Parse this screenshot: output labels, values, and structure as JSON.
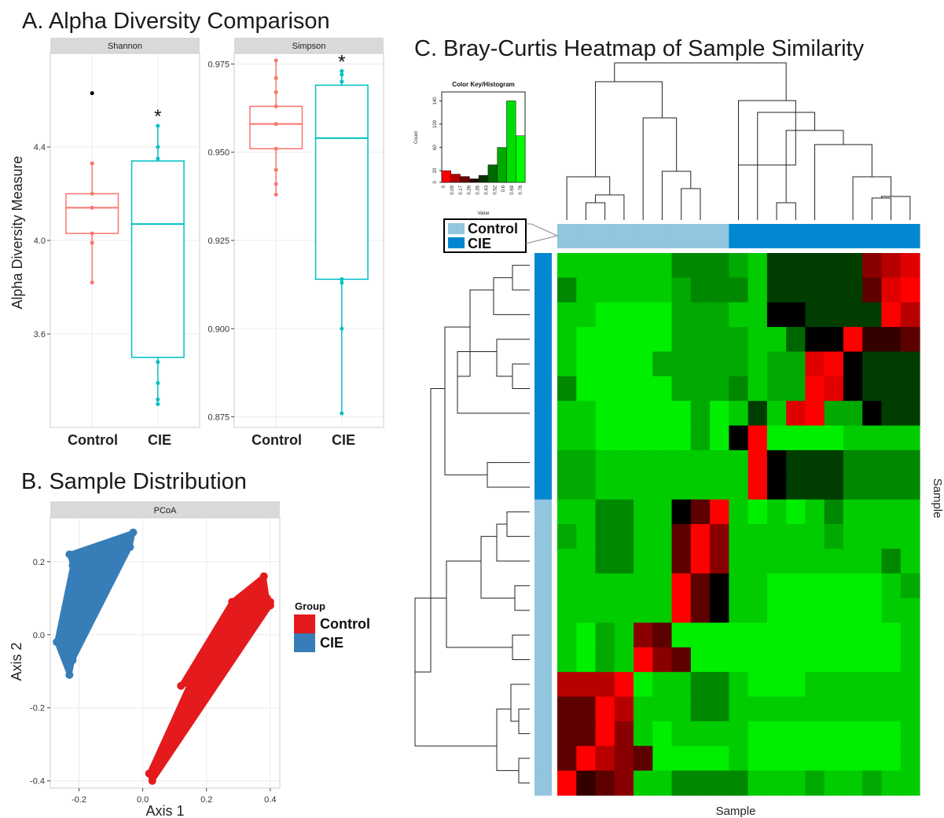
{
  "panels": {
    "a_title": "A. Alpha Diversity Comparison",
    "b_title": "B. Sample Distribution",
    "c_title": "C. Bray-Curtis Heatmap of Sample Similarity"
  },
  "colors": {
    "control_box": "#f8766d",
    "cie_box": "#00bfc4",
    "control_pcoa": "#e41a1c",
    "cie_pcoa": "#377eb8",
    "hm_control": "#92c5de",
    "hm_cie": "#0288d1",
    "strip_bg": "#d9d9d9",
    "panel_bg": "#ffffff",
    "grid": "#ebebeb"
  },
  "chart_data": [
    {
      "type": "box",
      "title": "Shannon",
      "ylabel": "Alpha Diversity Measure",
      "categories": [
        "Control",
        "CIE"
      ],
      "ylim": [
        3.2,
        4.8
      ],
      "yticks": [
        3.6,
        4.0,
        4.4
      ],
      "ytick_labels": [
        "3.6",
        "4.0",
        "4.4"
      ],
      "boxes": [
        {
          "group": "Control",
          "q1": 4.03,
          "median": 4.14,
          "q3": 4.2,
          "lower_whisker": 3.82,
          "upper_whisker": 4.33,
          "points": [
            3.82,
            3.99,
            4.03,
            4.14,
            4.2,
            4.33
          ],
          "outliers": [
            4.63
          ]
        },
        {
          "group": "CIE",
          "q1": 3.5,
          "median": 4.07,
          "q3": 4.34,
          "lower_whisker": 3.3,
          "upper_whisker": 4.49,
          "points": [
            3.3,
            3.32,
            3.39,
            3.48,
            4.35,
            4.4,
            4.49
          ],
          "outliers": []
        }
      ],
      "annotation": {
        "group": "CIE",
        "text": "*"
      }
    },
    {
      "type": "box",
      "title": "Simpson",
      "categories": [
        "Control",
        "CIE"
      ],
      "ylim": [
        0.872,
        0.978
      ],
      "yticks": [
        0.875,
        0.9,
        0.925,
        0.95,
        0.975
      ],
      "ytick_labels": [
        "0.875",
        "0.900",
        "0.925",
        "0.950",
        "0.975"
      ],
      "boxes": [
        {
          "group": "Control",
          "q1": 0.951,
          "median": 0.958,
          "q3": 0.963,
          "lower_whisker": 0.938,
          "upper_whisker": 0.976,
          "points": [
            0.938,
            0.941,
            0.945,
            0.951,
            0.958,
            0.963,
            0.967,
            0.971,
            0.976
          ],
          "outliers": []
        },
        {
          "group": "CIE",
          "q1": 0.914,
          "median": 0.954,
          "q3": 0.969,
          "lower_whisker": 0.876,
          "upper_whisker": 0.973,
          "points": [
            0.876,
            0.9,
            0.913,
            0.914,
            0.97,
            0.972,
            0.973
          ],
          "outliers": []
        }
      ],
      "annotation": {
        "group": "CIE",
        "text": "*"
      }
    },
    {
      "type": "scatter",
      "title": "PCoA",
      "xlabel": "Axis 1",
      "ylabel": "Axis 2",
      "xlim": [
        -0.29,
        0.43
      ],
      "ylim": [
        -0.42,
        0.32
      ],
      "xticks": [
        -0.2,
        0.0,
        0.2,
        0.4
      ],
      "xtick_labels": [
        "-0.2",
        "0.0",
        "0.2",
        "0.4"
      ],
      "yticks": [
        -0.4,
        -0.2,
        0.0,
        0.2
      ],
      "ytick_labels": [
        "-0.4",
        "-0.2",
        "0.0",
        "0.2"
      ],
      "legend_title": "Group",
      "legend_position": "right",
      "series": [
        {
          "name": "Control",
          "points": [
            [
              0.02,
              -0.38
            ],
            [
              0.03,
              -0.4
            ],
            [
              0.12,
              -0.14
            ],
            [
              0.15,
              -0.13
            ],
            [
              0.28,
              0.09
            ],
            [
              0.38,
              0.16
            ],
            [
              0.39,
              0.1
            ],
            [
              0.4,
              0.09
            ],
            [
              0.4,
              0.08
            ]
          ]
        },
        {
          "name": "CIE",
          "points": [
            [
              -0.03,
              0.28
            ],
            [
              -0.04,
              0.24
            ],
            [
              -0.23,
              0.22
            ],
            [
              -0.22,
              0.19
            ],
            [
              -0.27,
              -0.02
            ],
            [
              -0.22,
              -0.07
            ],
            [
              -0.23,
              -0.11
            ]
          ]
        }
      ]
    },
    {
      "type": "heatmap",
      "title": "Bray-Curtis Heatmap",
      "xlabel": "Sample",
      "ylabel": "Sample",
      "color_key": {
        "title": "Color Key/Histogram",
        "ylabel": "Count",
        "xlabel": "Value",
        "yticks": [
          0,
          20,
          60,
          100,
          140
        ],
        "xtick_labels": [
          "0",
          "0.09",
          "0.17",
          "0.26",
          "0.35",
          "0.43",
          "0.52",
          "0.6",
          "0.69",
          "0.78"
        ],
        "counts": [
          20,
          14,
          10,
          6,
          12,
          30,
          60,
          140,
          80
        ],
        "colors": [
          "#ff0000",
          "#b30000",
          "#6e0000",
          "#2a0000",
          "#003300",
          "#006b00",
          "#00a800",
          "#00dd00",
          "#00ff00"
        ]
      },
      "legend": [
        {
          "name": "Control",
          "color": "#92c5de"
        },
        {
          "name": "CIE",
          "color": "#0288d1"
        }
      ],
      "col_groups": [
        "Control",
        "Control",
        "Control",
        "Control",
        "Control",
        "Control",
        "Control",
        "Control",
        "Control",
        "CIE",
        "CIE",
        "CIE",
        "CIE",
        "CIE",
        "CIE",
        "CIE",
        "CIE",
        "CIE",
        "CIE"
      ],
      "row_groups": [
        "CIE",
        "CIE",
        "CIE",
        "CIE",
        "CIE",
        "CIE",
        "CIE",
        "CIE",
        "CIE",
        "CIE",
        "Control",
        "Control",
        "Control",
        "Control",
        "Control",
        "Control",
        "Control",
        "Control",
        "Control",
        "Control",
        "Control",
        "Control"
      ],
      "palette": {
        "a": "#00ee00",
        "b": "#00cc00",
        "c": "#00aa00",
        "d": "#008800",
        "e": "#006600",
        "f": "#003d00",
        "g": "#001a00",
        "k": "#000000",
        "m": "#330000",
        "n": "#5c0000",
        "o": "#8a0000",
        "p": "#b80000",
        "q": "#e00000",
        "r": "#ff0000"
      },
      "rows": [
        "bbbbbbdddcbfffffopq",
        "dbbbbbcdddbfffffnqr",
        "bbaaaacccbbkkffffrp",
        "baaaaaccccbbekkrmmn",
        "baaaacccccbccqrkfff",
        "daaaaacccdbccrqkfff",
        "bbaaaaacabfbqrcckff",
        "bbaaaaacakraaaabbbb",
        "ccbbbbbbbbrkfffdddd",
        "ccbbbbbbbbrkfffdddd",
        "bbddbbknrbababdbbbb",
        "cbddbbnrobbbbbcbbbb",
        "bbddbbnrobbbbbbbbdb",
        "bbbbbbrnkbbaaaaaabc",
        "bbbbbbrnkbbaaaaaabb",
        "bacbonaaaaaaaaaaaab",
        "bacbronaaaaaaaaaaab",
        "ppprabbddbaaabbbbbb",
        "nnrpbbbddbbbbbbbbbb",
        "nnrobabbbbaaaaaaaab",
        "nrponaaaabaaaaaaaab",
        "rmnobbddddbbbcbbcbb"
      ]
    }
  ]
}
